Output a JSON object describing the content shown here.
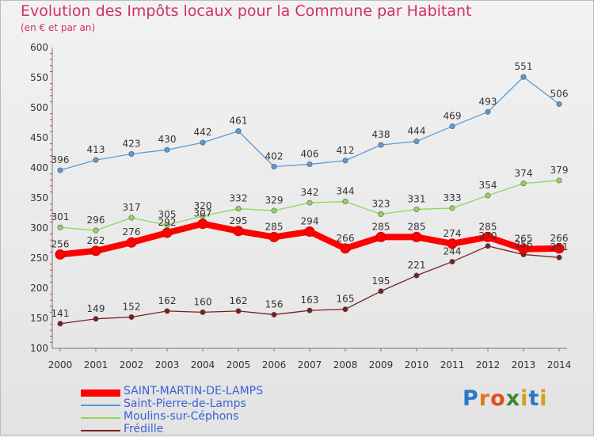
{
  "title": "Evolution des Impôts locaux pour la Commune par Habitant",
  "subtitle": "(en € et par an)",
  "logo": {
    "letters": [
      "P",
      "r",
      "o",
      "x",
      "i",
      "t",
      "i"
    ],
    "colors": [
      "#2a78c8",
      "#e07a18",
      "#e04f1a",
      "#3a8a2a",
      "#d4a017",
      "#2a78c8",
      "#d4a017"
    ]
  },
  "chart_data": {
    "type": "line",
    "x": [
      "2000",
      "2001",
      "2002",
      "2003",
      "2004",
      "2005",
      "2006",
      "2007",
      "2008",
      "2009",
      "2010",
      "2011",
      "2012",
      "2013",
      "2014"
    ],
    "ylim": [
      100,
      600
    ],
    "yticks": [
      100,
      150,
      200,
      250,
      300,
      350,
      400,
      450,
      500,
      550,
      600
    ],
    "grid": false,
    "legend_position": "bottom-left",
    "series": [
      {
        "name": "SAINT-MARTIN-DE-LAMPS",
        "color": "#ff0000",
        "values": [
          256,
          262,
          276,
          292,
          307,
          295,
          285,
          294,
          266,
          285,
          285,
          274,
          285,
          265,
          266
        ],
        "labels": [
          "256",
          "262",
          "276",
          "292",
          "307",
          "295",
          "285",
          "294",
          "266",
          "285",
          "285",
          "274",
          "285",
          "265",
          "266"
        ]
      },
      {
        "name": "Saint-Pierre-de-Lamps",
        "color": "#5b9bd5",
        "values": [
          396,
          413,
          423,
          430,
          442,
          461,
          402,
          406,
          412,
          438,
          444,
          469,
          493,
          551,
          506
        ],
        "labels": [
          "396",
          "413",
          "423",
          "430",
          "442",
          "461",
          "402",
          "406",
          "412",
          "438",
          "444",
          "469",
          "493",
          "551",
          "506"
        ]
      },
      {
        "name": "Moulins-sur-Céphons",
        "color": "#8fd65a",
        "values": [
          301,
          296,
          317,
          305,
          320,
          332,
          329,
          342,
          344,
          323,
          331,
          333,
          354,
          374,
          379
        ],
        "labels": [
          "301",
          "296",
          "317",
          "305",
          "320",
          "332",
          "329",
          "342",
          "344",
          "323",
          "331",
          "333",
          "354",
          "374",
          "379"
        ]
      },
      {
        "name": "Frédille",
        "color": "#7a1e1e",
        "values": [
          141,
          149,
          152,
          162,
          160,
          162,
          156,
          163,
          165,
          195,
          221,
          244,
          270,
          256,
          251
        ],
        "labels": [
          "141",
          "149",
          "152",
          "162",
          "160",
          "162",
          "156",
          "163",
          "165",
          "195",
          "221",
          "244",
          "270",
          "256",
          "251"
        ]
      }
    ]
  }
}
